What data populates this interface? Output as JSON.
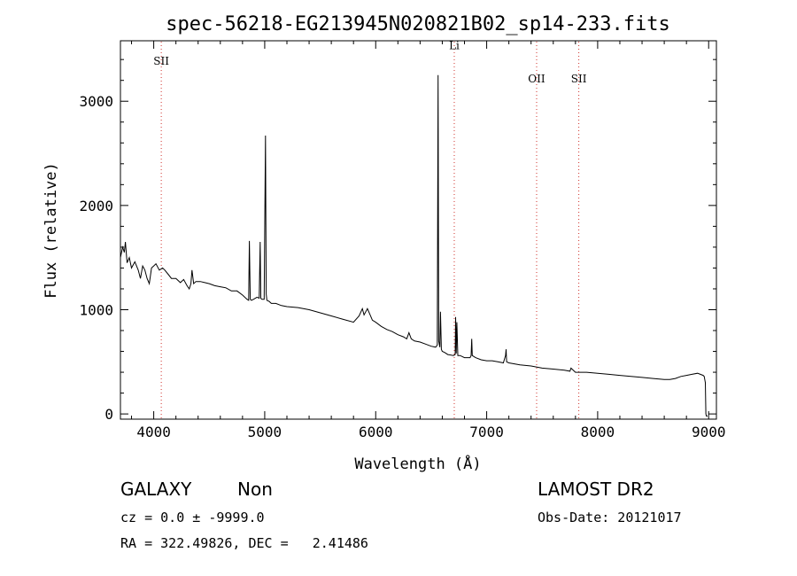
{
  "chart_data": {
    "type": "line",
    "title": "spec-56218-EG213945N020821B02_sp14-233.fits",
    "xlabel": "Wavelength (Å)",
    "ylabel": "Flux (relative)",
    "xlim": [
      3700,
      9070
    ],
    "ylim": [
      -50,
      3580
    ],
    "xticks": [
      4000,
      5000,
      6000,
      7000,
      8000,
      9000
    ],
    "yticks": [
      0,
      1000,
      2000,
      3000
    ],
    "grid": false,
    "series": [
      {
        "x": [
          3700,
          3720,
          3735,
          3745,
          3760,
          3780,
          3800,
          3830,
          3860,
          3880,
          3900,
          3920,
          3940,
          3960,
          3980,
          4000,
          4020,
          4050,
          4080,
          4100,
          4130,
          4160,
          4200,
          4240,
          4270,
          4300,
          4320,
          4335,
          4345,
          4360,
          4380,
          4420,
          4460,
          4500,
          4550,
          4600,
          4650,
          4700,
          4750,
          4800,
          4840,
          4855,
          4862,
          4870,
          4880,
          4900,
          4930,
          4950,
          4959,
          4965,
          4975,
          4995,
          5007,
          5013,
          5020,
          5040,
          5060,
          5100,
          5150,
          5200,
          5300,
          5400,
          5500,
          5600,
          5700,
          5800,
          5850,
          5880,
          5895,
          5910,
          5925,
          5950,
          5970,
          6000,
          6050,
          6100,
          6150,
          6200,
          6250,
          6280,
          6300,
          6320,
          6350,
          6400,
          6450,
          6500,
          6540,
          6555,
          6562,
          6568,
          6578,
          6584,
          6592,
          6600,
          6620,
          6650,
          6700,
          6716,
          6720,
          6726,
          6731,
          6740,
          6760,
          6800,
          6850,
          6860,
          6865,
          6870,
          6900,
          6950,
          7000,
          7050,
          7100,
          7150,
          7170,
          7175,
          7180,
          7200,
          7300,
          7400,
          7500,
          7600,
          7700,
          7750,
          7760,
          7800,
          7900,
          8000,
          8100,
          8200,
          8300,
          8400,
          8500,
          8600,
          8650,
          8700,
          8750,
          8800,
          8850,
          8900,
          8950,
          8960,
          8970,
          8975,
          8980,
          8990
        ],
        "y": [
          1500,
          1600,
          1550,
          1650,
          1450,
          1500,
          1400,
          1460,
          1380,
          1300,
          1420,
          1380,
          1300,
          1250,
          1400,
          1420,
          1440,
          1380,
          1400,
          1380,
          1340,
          1300,
          1300,
          1260,
          1290,
          1230,
          1200,
          1250,
          1380,
          1250,
          1270,
          1270,
          1260,
          1250,
          1230,
          1220,
          1210,
          1180,
          1180,
          1140,
          1100,
          1090,
          1660,
          1100,
          1090,
          1100,
          1120,
          1110,
          1650,
          1110,
          1100,
          1100,
          2670,
          1150,
          1090,
          1080,
          1060,
          1060,
          1040,
          1030,
          1020,
          1000,
          970,
          940,
          910,
          880,
          940,
          1010,
          950,
          980,
          1010,
          950,
          900,
          880,
          840,
          810,
          790,
          760,
          740,
          720,
          780,
          720,
          700,
          690,
          670,
          650,
          640,
          660,
          3250,
          700,
          640,
          980,
          620,
          600,
          590,
          570,
          560,
          570,
          930,
          580,
          880,
          560,
          560,
          540,
          540,
          560,
          720,
          560,
          540,
          520,
          510,
          510,
          500,
          490,
          560,
          620,
          500,
          490,
          470,
          460,
          440,
          430,
          420,
          410,
          440,
          400,
          400,
          390,
          380,
          370,
          360,
          350,
          340,
          330,
          330,
          340,
          360,
          370,
          380,
          390,
          370,
          360,
          300,
          0,
          -20,
          -20
        ]
      }
    ],
    "lines": [
      {
        "label": "SII",
        "x": 4068,
        "y": 3350
      },
      {
        "label": "Li",
        "x": 6708,
        "y": 3500
      },
      {
        "label": "OII",
        "x": 7450,
        "y": 3180
      },
      {
        "label": "SII",
        "x": 7830,
        "y": 3180
      }
    ]
  },
  "info": {
    "class": "GALAXY",
    "subclass": "Non",
    "cz": "cz = 0.0 ± -9999.0",
    "radec": "RA = 322.49826, DEC =   2.41486",
    "survey": "LAMOST DR2",
    "obsdate": "Obs-Date: 20121017"
  }
}
